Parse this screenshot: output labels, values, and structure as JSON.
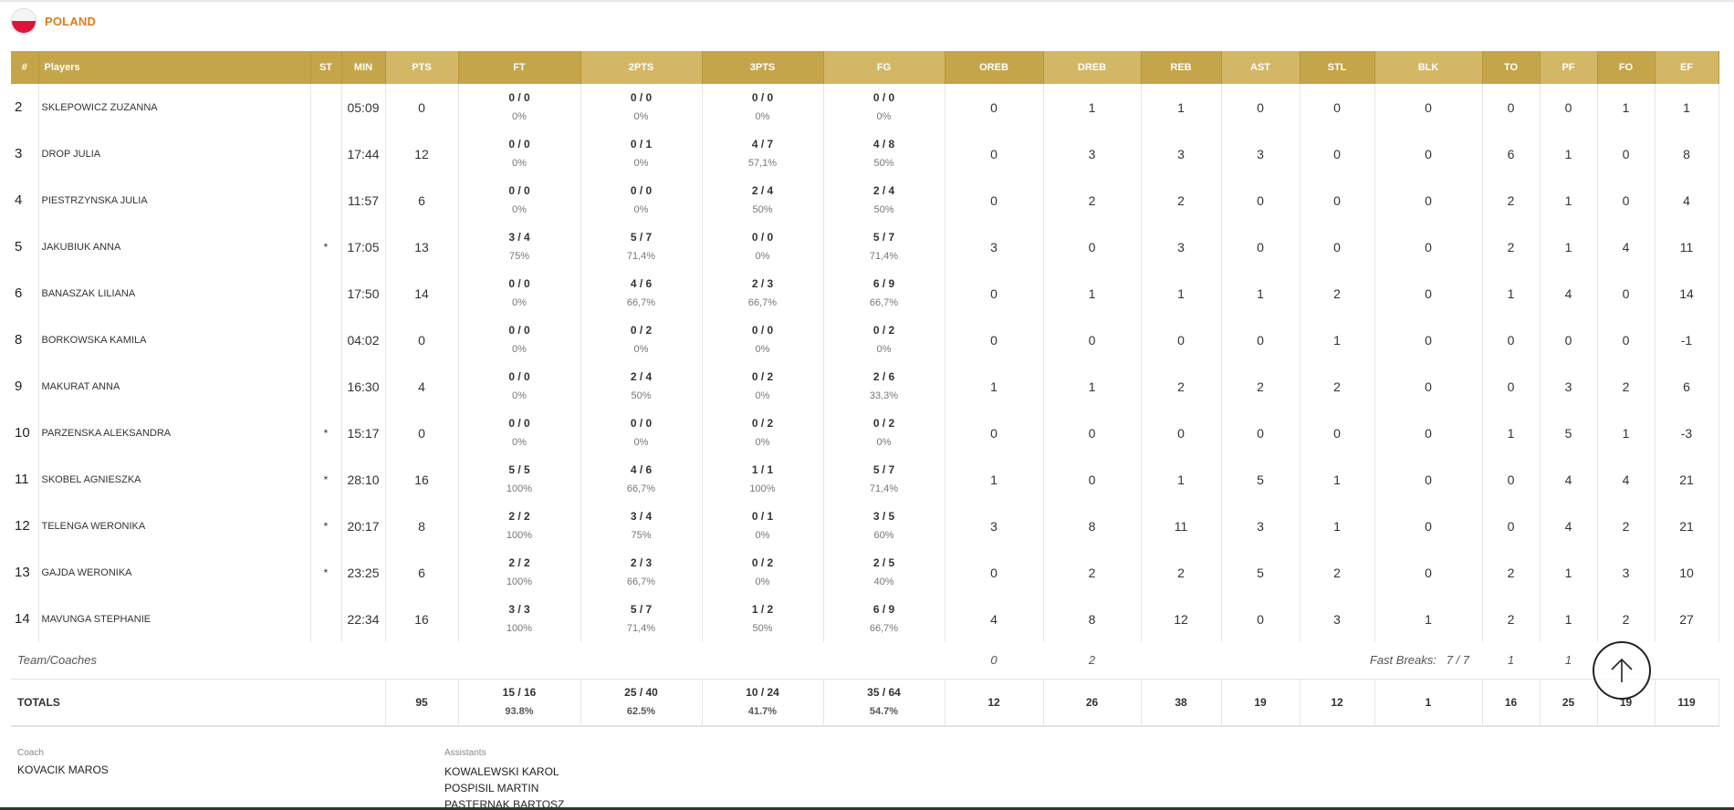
{
  "team": {
    "name": "POLAND"
  },
  "columns": {
    "num": "#",
    "player": "Players",
    "st": "ST",
    "min": "MIN",
    "pts": "PTS",
    "ft": "FT",
    "twopts": "2PTS",
    "threepts": "3PTS",
    "fg": "FG",
    "oreb": "OREB",
    "dreb": "DREB",
    "reb": "REB",
    "ast": "AST",
    "stl": "STL",
    "blk": "BLK",
    "to": "TO",
    "pf": "PF",
    "fo": "FO",
    "ef": "EF"
  },
  "players": [
    {
      "num": "2",
      "name": "SKLEPOWICZ ZUZANNA",
      "st": "",
      "min": "05:09",
      "pts": "0",
      "ft": "0 / 0",
      "ft_pct": "0%",
      "two": "0 / 0",
      "two_pct": "0%",
      "three": "0 / 0",
      "three_pct": "0%",
      "fg": "0 / 0",
      "fg_pct": "0%",
      "oreb": "0",
      "dreb": "1",
      "reb": "1",
      "ast": "0",
      "stl": "0",
      "blk": "0",
      "to": "0",
      "pf": "0",
      "fo": "1",
      "ef": "1"
    },
    {
      "num": "3",
      "name": "DROP JULIA",
      "st": "",
      "min": "17:44",
      "pts": "12",
      "ft": "0 / 0",
      "ft_pct": "0%",
      "two": "0 / 1",
      "two_pct": "0%",
      "three": "4 / 7",
      "three_pct": "57,1%",
      "fg": "4 / 8",
      "fg_pct": "50%",
      "oreb": "0",
      "dreb": "3",
      "reb": "3",
      "ast": "3",
      "stl": "0",
      "blk": "0",
      "to": "6",
      "pf": "1",
      "fo": "0",
      "ef": "8"
    },
    {
      "num": "4",
      "name": "PIESTRZYNSKA JULIA",
      "st": "",
      "min": "11:57",
      "pts": "6",
      "ft": "0 / 0",
      "ft_pct": "0%",
      "two": "0 / 0",
      "two_pct": "0%",
      "three": "2 / 4",
      "three_pct": "50%",
      "fg": "2 / 4",
      "fg_pct": "50%",
      "oreb": "0",
      "dreb": "2",
      "reb": "2",
      "ast": "0",
      "stl": "0",
      "blk": "0",
      "to": "2",
      "pf": "1",
      "fo": "0",
      "ef": "4"
    },
    {
      "num": "5",
      "name": "JAKUBIUK ANNA",
      "st": "*",
      "min": "17:05",
      "pts": "13",
      "ft": "3 / 4",
      "ft_pct": "75%",
      "two": "5 / 7",
      "two_pct": "71,4%",
      "three": "0 / 0",
      "three_pct": "0%",
      "fg": "5 / 7",
      "fg_pct": "71,4%",
      "oreb": "3",
      "dreb": "0",
      "reb": "3",
      "ast": "0",
      "stl": "0",
      "blk": "0",
      "to": "2",
      "pf": "1",
      "fo": "4",
      "ef": "11"
    },
    {
      "num": "6",
      "name": "BANASZAK LILIANA",
      "st": "",
      "min": "17:50",
      "pts": "14",
      "ft": "0 / 0",
      "ft_pct": "0%",
      "two": "4 / 6",
      "two_pct": "66,7%",
      "three": "2 / 3",
      "three_pct": "66,7%",
      "fg": "6 / 9",
      "fg_pct": "66,7%",
      "oreb": "0",
      "dreb": "1",
      "reb": "1",
      "ast": "1",
      "stl": "2",
      "blk": "0",
      "to": "1",
      "pf": "4",
      "fo": "0",
      "ef": "14"
    },
    {
      "num": "8",
      "name": "BORKOWSKA KAMILA",
      "st": "",
      "min": "04:02",
      "pts": "0",
      "ft": "0 / 0",
      "ft_pct": "0%",
      "two": "0 / 2",
      "two_pct": "0%",
      "three": "0 / 0",
      "three_pct": "0%",
      "fg": "0 / 2",
      "fg_pct": "0%",
      "oreb": "0",
      "dreb": "0",
      "reb": "0",
      "ast": "0",
      "stl": "1",
      "blk": "0",
      "to": "0",
      "pf": "0",
      "fo": "0",
      "ef": "-1"
    },
    {
      "num": "9",
      "name": "MAKURAT ANNA",
      "st": "",
      "min": "16:30",
      "pts": "4",
      "ft": "0 / 0",
      "ft_pct": "0%",
      "two": "2 / 4",
      "two_pct": "50%",
      "three": "0 / 2",
      "three_pct": "0%",
      "fg": "2 / 6",
      "fg_pct": "33,3%",
      "oreb": "1",
      "dreb": "1",
      "reb": "2",
      "ast": "2",
      "stl": "2",
      "blk": "0",
      "to": "0",
      "pf": "3",
      "fo": "2",
      "ef": "6"
    },
    {
      "num": "10",
      "name": "PARZENSKA ALEKSANDRA",
      "st": "*",
      "min": "15:17",
      "pts": "0",
      "ft": "0 / 0",
      "ft_pct": "0%",
      "two": "0 / 0",
      "two_pct": "0%",
      "three": "0 / 2",
      "three_pct": "0%",
      "fg": "0 / 2",
      "fg_pct": "0%",
      "oreb": "0",
      "dreb": "0",
      "reb": "0",
      "ast": "0",
      "stl": "0",
      "blk": "0",
      "to": "1",
      "pf": "5",
      "fo": "1",
      "ef": "-3"
    },
    {
      "num": "11",
      "name": "SKOBEL AGNIESZKA",
      "st": "*",
      "min": "28:10",
      "pts": "16",
      "ft": "5 / 5",
      "ft_pct": "100%",
      "two": "4 / 6",
      "two_pct": "66,7%",
      "three": "1 / 1",
      "three_pct": "100%",
      "fg": "5 / 7",
      "fg_pct": "71,4%",
      "oreb": "1",
      "dreb": "0",
      "reb": "1",
      "ast": "5",
      "stl": "1",
      "blk": "0",
      "to": "0",
      "pf": "4",
      "fo": "4",
      "ef": "21"
    },
    {
      "num": "12",
      "name": "TELENGA WERONIKA",
      "st": "*",
      "min": "20:17",
      "pts": "8",
      "ft": "2 / 2",
      "ft_pct": "100%",
      "two": "3 / 4",
      "two_pct": "75%",
      "three": "0 / 1",
      "three_pct": "0%",
      "fg": "3 / 5",
      "fg_pct": "60%",
      "oreb": "3",
      "dreb": "8",
      "reb": "11",
      "ast": "3",
      "stl": "1",
      "blk": "0",
      "to": "0",
      "pf": "4",
      "fo": "2",
      "ef": "21"
    },
    {
      "num": "13",
      "name": "GAJDA WERONIKA",
      "st": "*",
      "min": "23:25",
      "pts": "6",
      "ft": "2 / 2",
      "ft_pct": "100%",
      "two": "2 / 3",
      "two_pct": "66,7%",
      "three": "0 / 2",
      "three_pct": "0%",
      "fg": "2 / 5",
      "fg_pct": "40%",
      "oreb": "0",
      "dreb": "2",
      "reb": "2",
      "ast": "5",
      "stl": "2",
      "blk": "0",
      "to": "2",
      "pf": "1",
      "fo": "3",
      "ef": "10"
    },
    {
      "num": "14",
      "name": "MAVUNGA STEPHANIE",
      "st": "",
      "min": "22:34",
      "pts": "16",
      "ft": "3 / 3",
      "ft_pct": "100%",
      "two": "5 / 7",
      "two_pct": "71,4%",
      "three": "1 / 2",
      "three_pct": "50%",
      "fg": "6 / 9",
      "fg_pct": "66,7%",
      "oreb": "4",
      "dreb": "8",
      "reb": "12",
      "ast": "0",
      "stl": "3",
      "blk": "1",
      "to": "2",
      "pf": "1",
      "fo": "2",
      "ef": "27"
    }
  ],
  "team_row": {
    "label": "Team/Coaches",
    "oreb": "0",
    "dreb": "2",
    "fast_breaks_label": "Fast Breaks:",
    "fast_breaks_value": "7 / 7",
    "to": "1",
    "pf": "1"
  },
  "totals": {
    "label": "TOTALS",
    "pts": "95",
    "ft": "15 / 16",
    "ft_pct": "93.8%",
    "two": "25 / 40",
    "two_pct": "62.5%",
    "three": "10 / 24",
    "three_pct": "41.7%",
    "fg": "35 / 64",
    "fg_pct": "54.7%",
    "oreb": "12",
    "dreb": "26",
    "reb": "38",
    "ast": "19",
    "stl": "12",
    "blk": "1",
    "to": "16",
    "pf": "25",
    "fo": "19",
    "ef": "119"
  },
  "coach": {
    "label": "Coach",
    "name": "KOVACIK MAROS"
  },
  "assistants": {
    "label": "Assistants",
    "names": [
      "KOWALEWSKI KAROL",
      "POSPISIL MARTIN",
      "PASTERNAK BARTOSZ"
    ]
  },
  "colors": {
    "header": "#c5a54a",
    "header_alt": "#d3b766",
    "team_name": "#e07b16"
  }
}
